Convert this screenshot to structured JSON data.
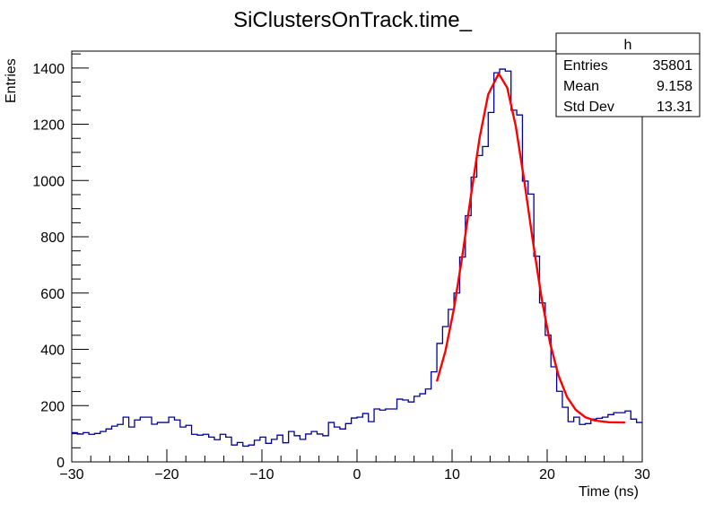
{
  "chart_data": {
    "type": "histogram",
    "title": "SiClustersOnTrack.time_",
    "xlabel": "Time (ns)",
    "ylabel": "Entries",
    "xlim": [
      -30,
      30
    ],
    "ylim": [
      0,
      1460
    ],
    "x_ticks": [
      -30,
      -20,
      -10,
      0,
      10,
      20,
      30
    ],
    "x_tick_labels": [
      "−30",
      "−20",
      "−10",
      "0",
      "10",
      "20",
      "30"
    ],
    "y_ticks": [
      0,
      200,
      400,
      600,
      800,
      1000,
      1200,
      1400
    ],
    "y_tick_labels": [
      "0",
      "200",
      "400",
      "600",
      "800",
      "1000",
      "1200",
      "1400"
    ],
    "grid": false,
    "bins": {
      "low": -30,
      "high": 30,
      "count": 100,
      "values": [
        104,
        99,
        104,
        98,
        101,
        108,
        117,
        127,
        133,
        159,
        124,
        149,
        159,
        159,
        134,
        140,
        140,
        159,
        149,
        124,
        130,
        98,
        95,
        98,
        88,
        79,
        98,
        88,
        60,
        69,
        56,
        60,
        77,
        88,
        66,
        80,
        95,
        68,
        108,
        93,
        80,
        99,
        108,
        99,
        93,
        140,
        124,
        117,
        136,
        156,
        159,
        172,
        143,
        188,
        184,
        188,
        188,
        223,
        220,
        213,
        233,
        242,
        259,
        320,
        421,
        481,
        542,
        600,
        728,
        875,
        1012,
        1089,
        1121,
        1242,
        1383,
        1396,
        1389,
        1250,
        1233,
        998,
        952,
        731,
        565,
        450,
        338,
        251,
        194,
        143,
        159,
        133,
        136,
        152,
        155,
        159,
        168,
        175,
        175,
        181,
        152,
        140
      ]
    },
    "series": [
      {
        "kind": "histogram",
        "color": "#000099"
      },
      {
        "kind": "fit-curve",
        "color": "#ff0000",
        "x": [
          8.4,
          9.3,
          10.2,
          11.1,
          12.0,
          12.9,
          13.8,
          14.9,
          15.8,
          16.7,
          17.6,
          18.5,
          19.4,
          20.3,
          21.2,
          22.1,
          23.0,
          24.0,
          25.0,
          26.5,
          28.2
        ],
        "y": [
          286,
          394,
          545,
          737,
          950,
          1153,
          1306,
          1380,
          1330,
          1193,
          997,
          784,
          585,
          423,
          306,
          230,
          185,
          159,
          147,
          141,
          140
        ]
      }
    ],
    "stats_box": {
      "title": "h",
      "rows": [
        {
          "label": "Entries",
          "value": "35801"
        },
        {
          "label": "Mean",
          "value": "9.158"
        },
        {
          "label": "Std Dev",
          "value": "13.31"
        }
      ]
    }
  }
}
